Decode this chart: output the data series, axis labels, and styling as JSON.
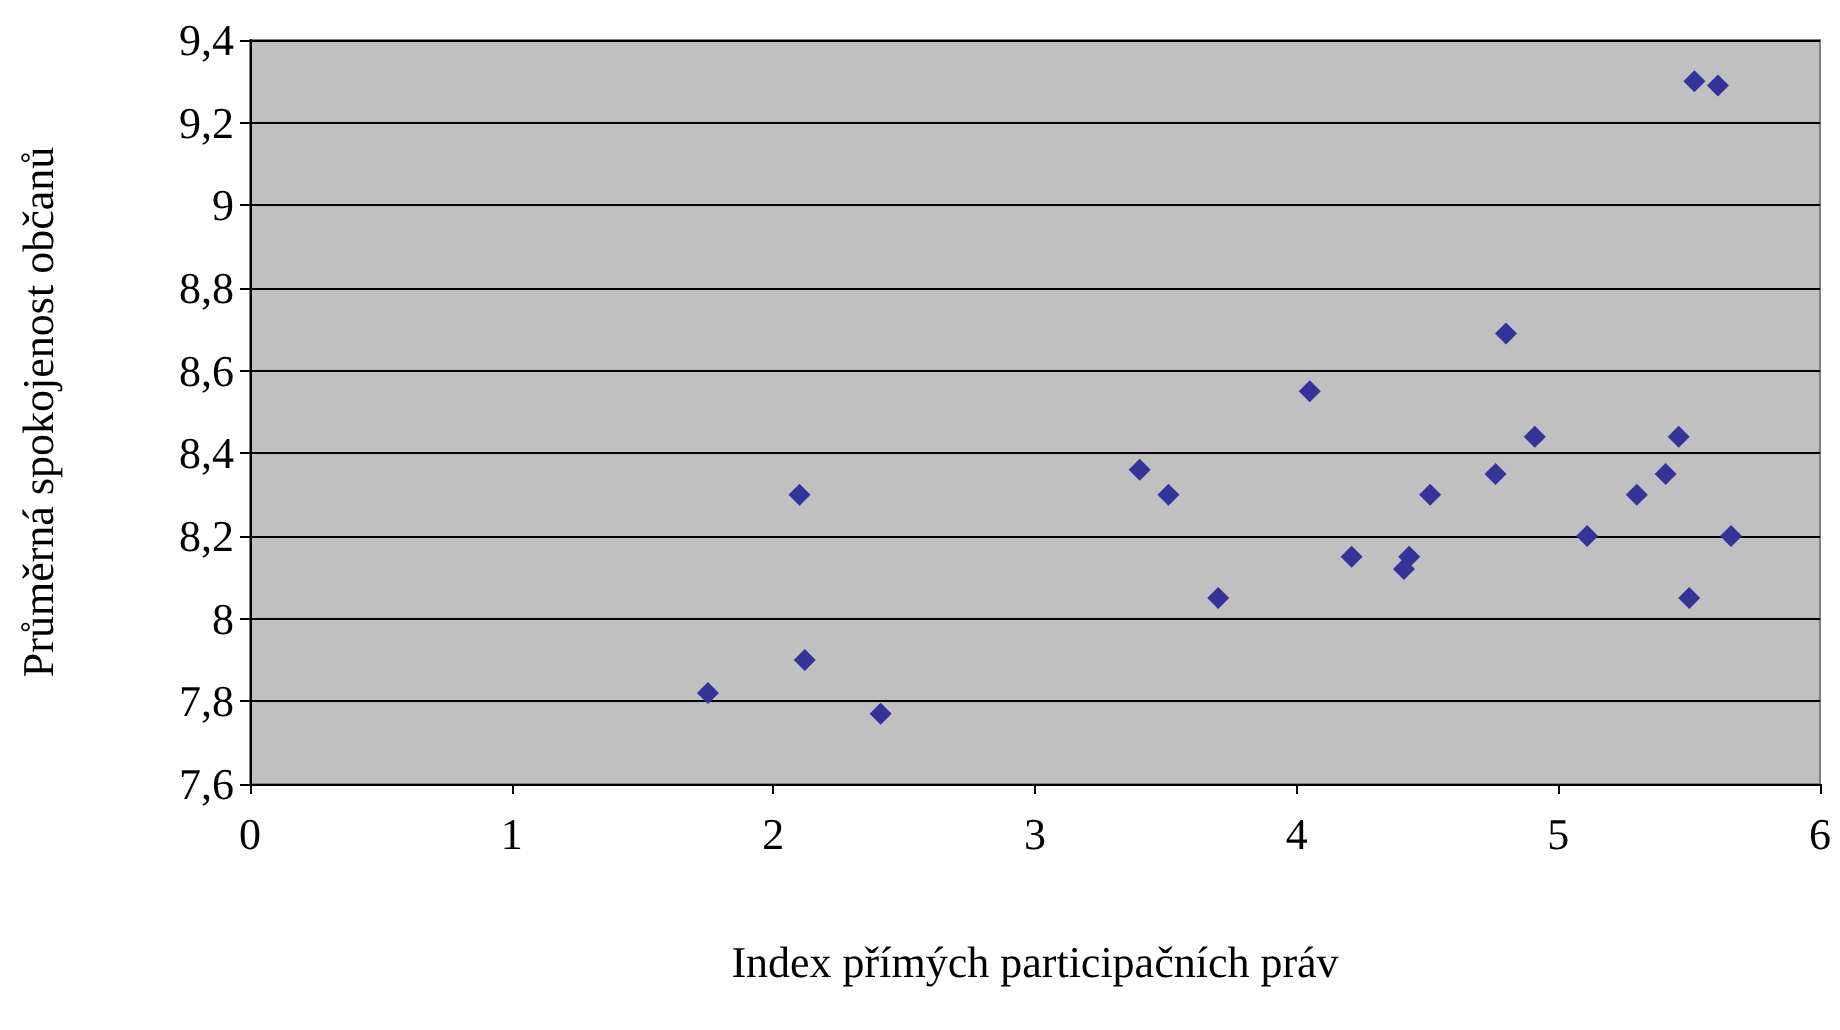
{
  "chart_data": {
    "type": "scatter",
    "xlabel": "Index přímých participačních práv",
    "ylabel": "Průměrná spokojenost občanů",
    "x": [
      1.75,
      2.1,
      2.12,
      2.41,
      3.4,
      3.51,
      3.7,
      4.05,
      4.21,
      4.41,
      4.43,
      4.51,
      4.76,
      4.8,
      4.91,
      5.11,
      5.3,
      5.41,
      5.46,
      5.5,
      5.52,
      5.61,
      5.66
    ],
    "series": [
      {
        "color": "#333399",
        "values": [
          7.82,
          8.3,
          7.9,
          7.77,
          8.36,
          8.3,
          8.05,
          8.55,
          8.15,
          8.12,
          8.15,
          8.3,
          8.35,
          8.69,
          8.44,
          8.2,
          8.3,
          8.35,
          8.44,
          8.05,
          9.3,
          9.29,
          8.2
        ]
      }
    ],
    "xlim": [
      0,
      6
    ],
    "xticks": [
      0,
      1,
      2,
      3,
      4,
      5,
      6
    ],
    "ylim": [
      7.6,
      9.4
    ],
    "yticks": [
      {
        "value": 7.6,
        "label": "7,6"
      },
      {
        "value": 7.8,
        "label": "7,8"
      },
      {
        "value": 8,
        "label": "8"
      },
      {
        "value": 8.2,
        "label": "8,2"
      },
      {
        "value": 8.4,
        "label": "8,4"
      },
      {
        "value": 8.6,
        "label": "8,6"
      },
      {
        "value": 8.8,
        "label": "8,8"
      },
      {
        "value": 9,
        "label": "9"
      },
      {
        "value": 9.2,
        "label": "9,2"
      },
      {
        "value": 9.4,
        "label": "9,4"
      }
    ],
    "grid": "y",
    "marker": "diamond"
  }
}
